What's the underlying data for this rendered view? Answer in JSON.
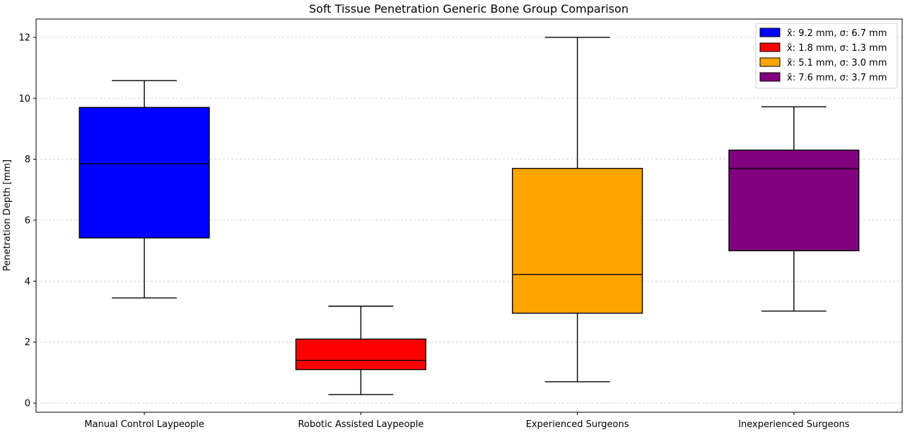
{
  "chart_data": {
    "type": "box",
    "title": "Soft Tissue Penetration Generic Bone Group Comparison",
    "xlabel": "",
    "ylabel": "Penetration Depth [mm]",
    "ylim": [
      -0.3,
      12.6
    ],
    "yticks": [
      0,
      2,
      4,
      6,
      8,
      10,
      12
    ],
    "grid": "horizontal dashed",
    "legend_position": "top-right",
    "categories": [
      "Manual Control Laypeople",
      "Robotic Assisted Laypeople",
      "Experienced Surgeons",
      "Inexperienced Surgeons"
    ],
    "boxes": [
      {
        "category": "Manual Control Laypeople",
        "whisker_low": 3.45,
        "q1": 5.42,
        "median": 7.85,
        "q3": 9.7,
        "whisker_high": 10.58,
        "color": "#0000ff"
      },
      {
        "category": "Robotic Assisted Laypeople",
        "whisker_low": 0.28,
        "q1": 1.1,
        "median": 1.4,
        "q3": 2.1,
        "whisker_high": 3.18,
        "color": "#ff0000"
      },
      {
        "category": "Experienced Surgeons",
        "whisker_low": 0.7,
        "q1": 2.95,
        "median": 4.22,
        "q3": 7.7,
        "whisker_high": 12.0,
        "color": "#ffa500"
      },
      {
        "category": "Inexperienced Surgeons",
        "whisker_low": 3.02,
        "q1": 5.0,
        "median": 7.7,
        "q3": 8.3,
        "whisker_high": 9.72,
        "color": "#800080"
      }
    ],
    "legend": [
      {
        "label": "x̃: 9.2 mm, σ: 6.7 mm",
        "color": "#0000ff"
      },
      {
        "label": "x̃: 1.8 mm, σ: 1.3 mm",
        "color": "#ff0000"
      },
      {
        "label": "x̃: 5.1 mm, σ: 3.0 mm",
        "color": "#ffa500"
      },
      {
        "label": "x̃: 7.6 mm, σ: 3.7 mm",
        "color": "#800080"
      }
    ]
  }
}
